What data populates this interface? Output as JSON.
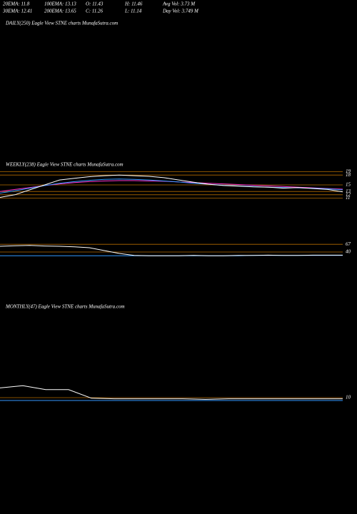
{
  "header": {
    "stats": [
      [
        "20EMA: 11.8",
        "100EMA: 13.13",
        "O: 11.43",
        "H: 11.46",
        "Avg Vol: 3.73 M"
      ],
      [
        "30EMA: 12.41",
        "200EMA: 13.65",
        "C: 11.26",
        "L: 11.14",
        "Day Vol: 3.749 M"
      ]
    ]
  },
  "chart_data": [
    {
      "type": "line",
      "title": "DAILY(250) Eagle  View  STNE charts MunafaSutra.com"
    },
    {
      "type": "line",
      "title": "WEEKLY(238) Eagle  View  STNE charts MunafaSutra.com",
      "ylim": [
        10,
        20
      ],
      "yticks": [
        19,
        18,
        15,
        13,
        12,
        11
      ],
      "grid": true,
      "grid_color": "#b36b00",
      "series": [
        {
          "color": "#ff33cc",
          "values": [
            13,
            13.6,
            14.2,
            14.8,
            15.3,
            15.7,
            16,
            16.2,
            16.3,
            16.3,
            16.2,
            16.1,
            15.9,
            15.7,
            15.5,
            15.3,
            15.1,
            14.9,
            14.7,
            14.5,
            14.3,
            14.1,
            13.9,
            13.7
          ]
        },
        {
          "color": "#3399ff",
          "values": [
            12.5,
            13.2,
            14,
            14.8,
            15.5,
            16,
            16.4,
            16.7,
            16.8,
            16.7,
            16.5,
            16.2,
            15.9,
            15.5,
            15.2,
            14.9,
            14.7,
            14.5,
            14.3,
            14.2,
            14.1,
            14,
            13.8,
            13.5
          ]
        },
        {
          "color": "#ffffff",
          "values": [
            11.2,
            12,
            13.5,
            15,
            16.5,
            17,
            17.5,
            17.8,
            18,
            17.8,
            17.6,
            17.2,
            16.5,
            15.8,
            15.2,
            14.8,
            14.6,
            14.4,
            14.3,
            14,
            14.2,
            13.9,
            13.6,
            12.9
          ]
        }
      ]
    },
    {
      "type": "line",
      "ylim": [
        20,
        80
      ],
      "yticks": [
        67,
        40
      ],
      "grid": true,
      "grid_color": "#b36b00",
      "series": [
        {
          "color": "#3399ff",
          "values": [
            27,
            27,
            27,
            27,
            27,
            27,
            27,
            27,
            27,
            27,
            27,
            27,
            27,
            27,
            27,
            27,
            27,
            28,
            28,
            28,
            28,
            28,
            28,
            28
          ]
        },
        {
          "color": "#ffffff",
          "values": [
            60,
            62,
            63,
            61,
            60,
            58,
            55,
            45,
            35,
            28,
            27,
            27,
            27,
            28,
            27,
            27,
            28,
            28,
            29,
            28,
            28,
            29,
            29,
            29
          ]
        }
      ]
    },
    {
      "type": "line",
      "title": "MONTHLY(47) Eagle  View  STNE charts MunafaSutra.com",
      "ylim": [
        0,
        40
      ],
      "yticks": [
        10
      ],
      "grid": true,
      "grid_color": "#b36b00",
      "series": [
        {
          "color": "#3399ff",
          "values": [
            5,
            5,
            5,
            5,
            5,
            5,
            5,
            5,
            5,
            5,
            5,
            5,
            5,
            5,
            5,
            5
          ]
        },
        {
          "color": "#ffffff",
          "values": [
            27,
            31,
            24,
            24,
            9,
            8,
            8,
            8,
            8,
            7,
            8,
            8,
            8,
            8,
            8,
            8
          ]
        }
      ]
    }
  ]
}
